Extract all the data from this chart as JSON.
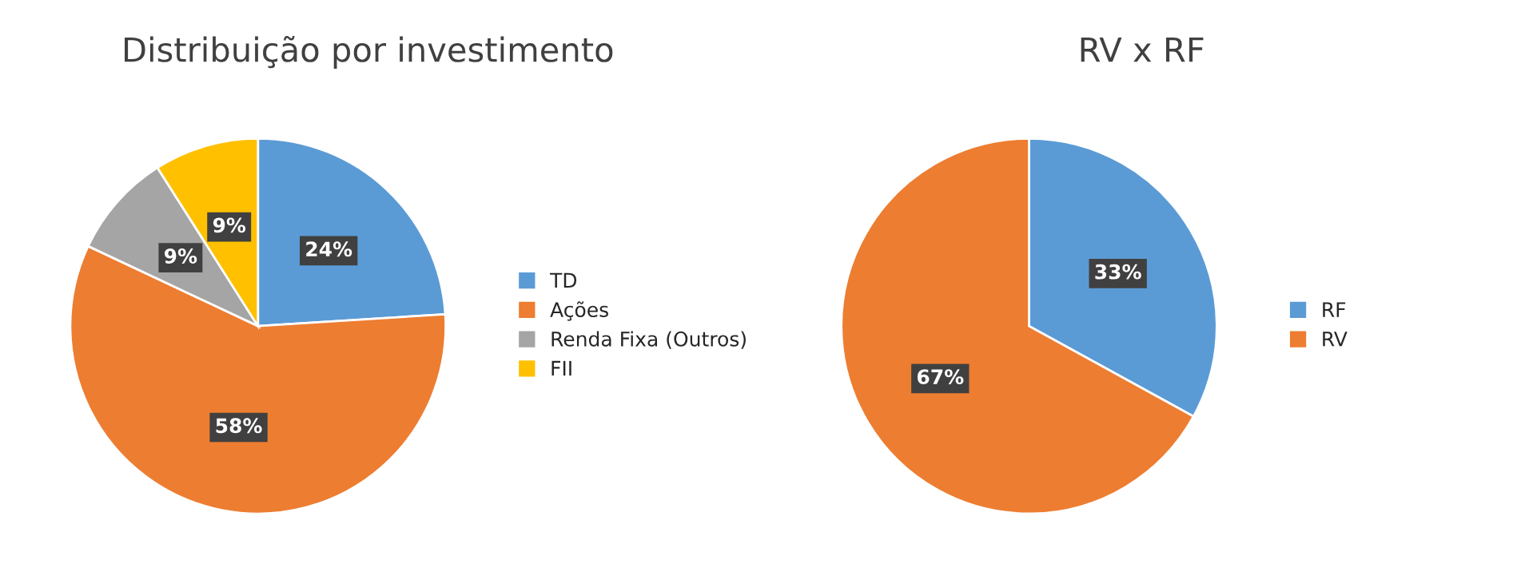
{
  "chart_data": [
    {
      "type": "pie",
      "title": "Distribuição por investimento",
      "categories": [
        "TD",
        "Ações",
        "Renda Fixa (Outros)",
        "FII"
      ],
      "values": [
        24,
        58,
        9,
        9
      ],
      "value_labels": [
        "24%",
        "58%",
        "9%",
        "9%"
      ],
      "colors": [
        "#5b9bd5",
        "#ed7d31",
        "#a5a5a5",
        "#ffc000"
      ],
      "legend": "right"
    },
    {
      "type": "pie",
      "title": "RV x RF",
      "categories": [
        "RF",
        "RV"
      ],
      "values": [
        33,
        67
      ],
      "value_labels": [
        "33%",
        "67%"
      ],
      "colors": [
        "#5b9bd5",
        "#ed7d31"
      ],
      "legend": "right"
    }
  ]
}
